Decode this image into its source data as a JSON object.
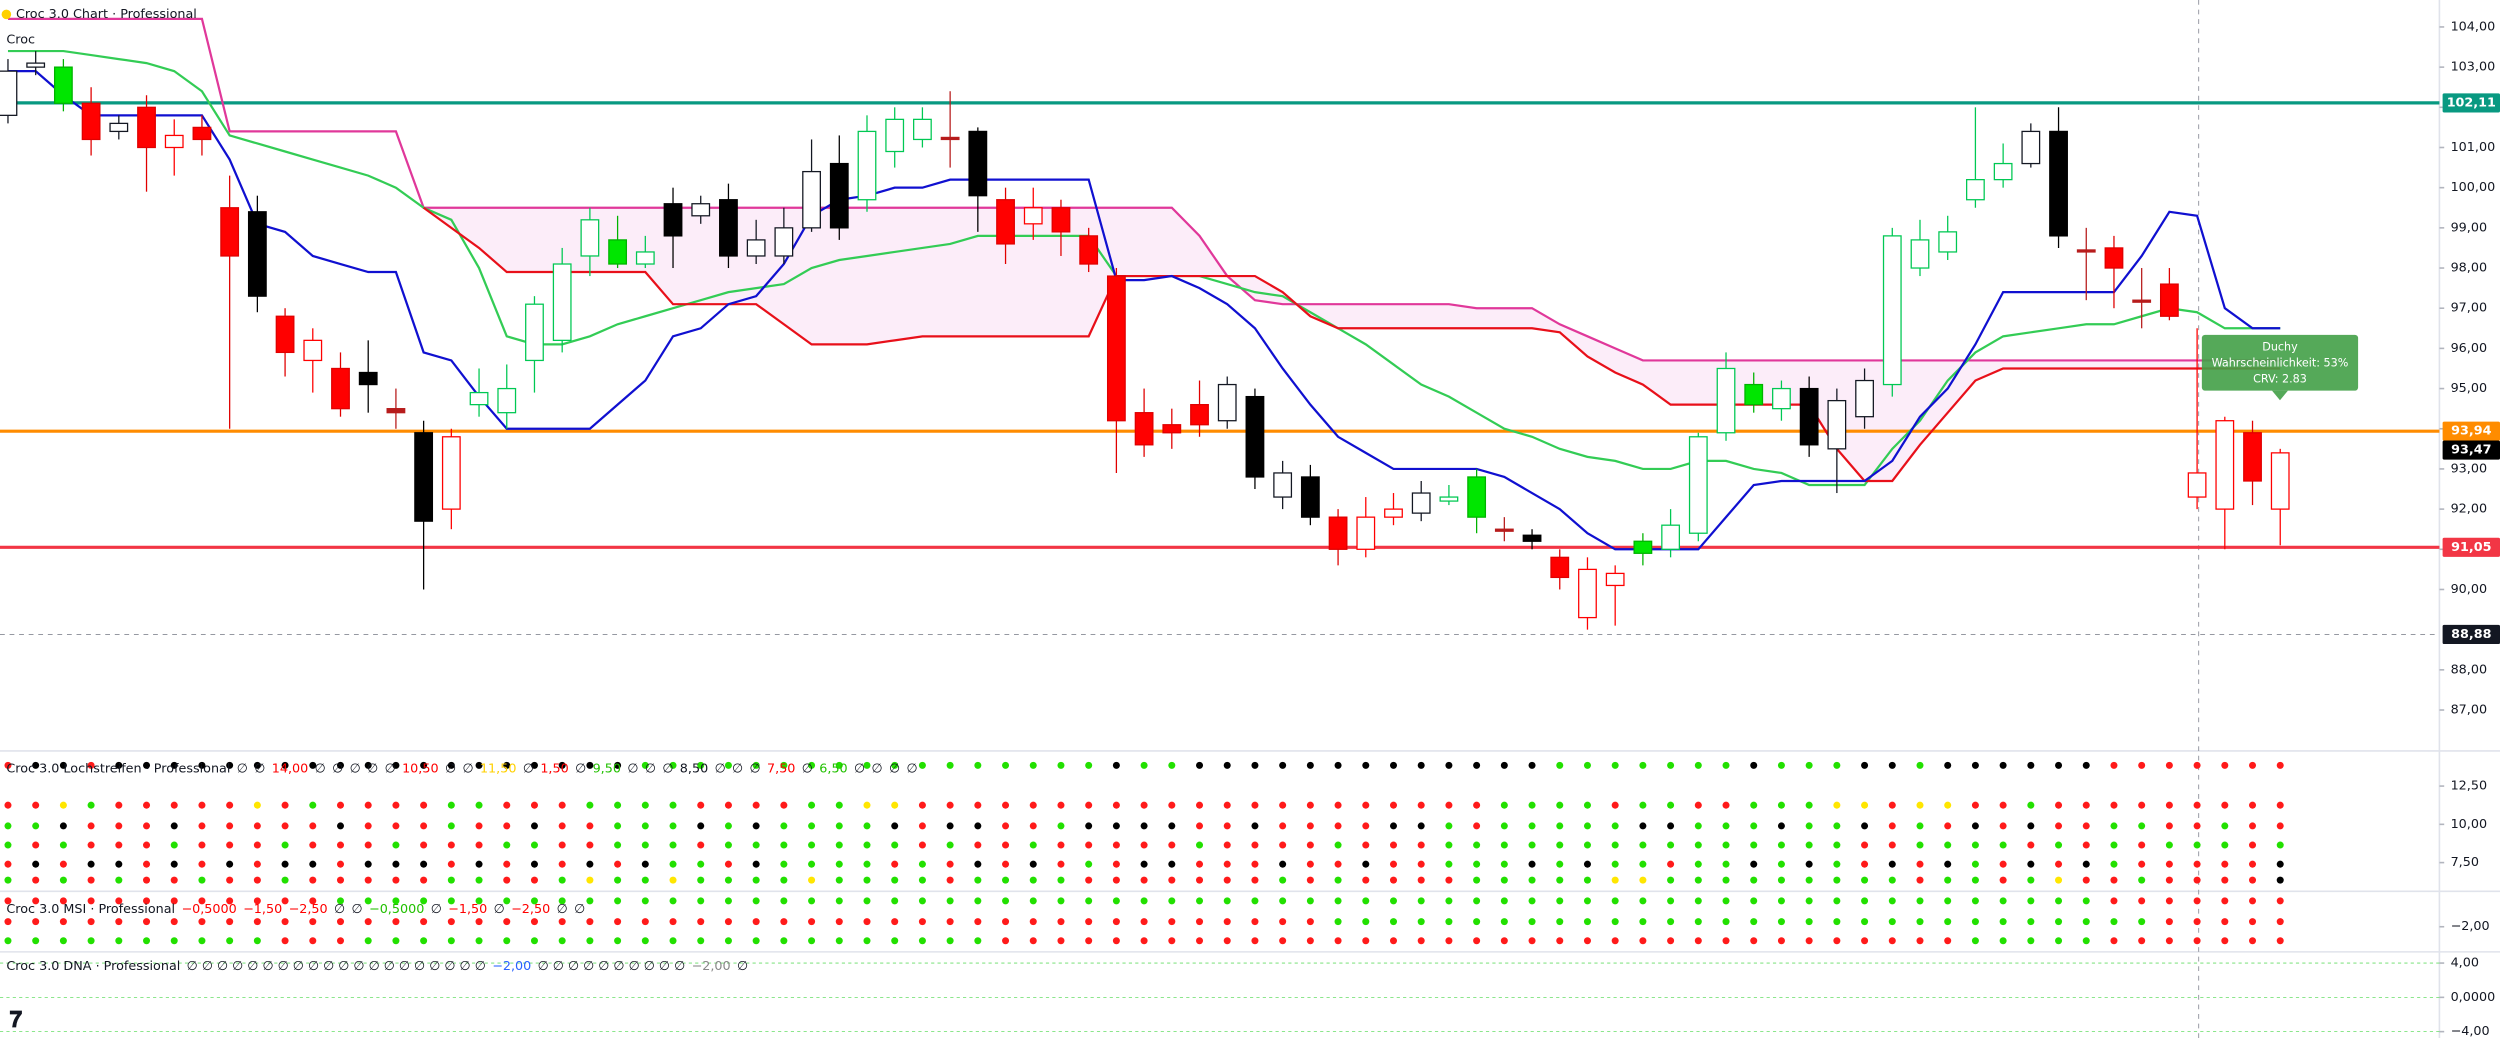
{
  "chart_data": {
    "type": "candlestick",
    "title": "Croc 3.0 Chart · Professional",
    "subtitle": "Croc",
    "ylim": [
      86.02,
      104.67
    ],
    "yticks": [
      {
        "value": 87,
        "label": "87,00"
      },
      {
        "value": 88,
        "label": "88,00"
      },
      {
        "value": 90,
        "label": "90,00"
      },
      {
        "value": 91,
        "label": "91,00"
      },
      {
        "value": 92,
        "label": "92,00"
      },
      {
        "value": 93,
        "label": "93,00"
      },
      {
        "value": 94,
        "label": "94,00"
      },
      {
        "value": 95,
        "label": "95,00"
      },
      {
        "value": 96,
        "label": "96,00"
      },
      {
        "value": 97,
        "label": "97,00"
      },
      {
        "value": 98,
        "label": "98,00"
      },
      {
        "value": 99,
        "label": "99,00"
      },
      {
        "value": 100,
        "label": "100,00"
      },
      {
        "value": 101,
        "label": "101,00"
      },
      {
        "value": 102,
        "label": "102,00"
      },
      {
        "value": 103,
        "label": "103,00"
      },
      {
        "value": 104,
        "label": "104,00"
      }
    ],
    "open": [
      101.8,
      103.0,
      102.1,
      102.1,
      101.4,
      102.0,
      101.0,
      101.5,
      99.5,
      99.4,
      96.8,
      95.7,
      95.5,
      95.4,
      94.5,
      93.9,
      92.0,
      94.6,
      94.4,
      95.7,
      96.2,
      98.3,
      98.1,
      98.1,
      99.6,
      99.3,
      99.7,
      98.3,
      98.3,
      99.0,
      100.6,
      99.7,
      100.9,
      101.2,
      101.25,
      101.4,
      99.7,
      99.1,
      99.5,
      98.8,
      97.8,
      94.4,
      94.1,
      94.6,
      94.2,
      94.8,
      92.3,
      92.8,
      91.8,
      91.0,
      91.8,
      91.9,
      92.2,
      91.8,
      91.5,
      91.35,
      90.8,
      89.3,
      90.1,
      90.9,
      91.0,
      91.4,
      93.9,
      94.6,
      94.5,
      95.0,
      93.5,
      94.3,
      95.1,
      98.0,
      98.4,
      99.7,
      100.2,
      100.6,
      101.4,
      98.45,
      98.5,
      97.2,
      97.6,
      92.3,
      92.0,
      93.9,
      92.0
    ],
    "high": [
      103.2,
      103.4,
      103.2,
      102.5,
      101.8,
      102.3,
      101.7,
      101.8,
      100.3,
      99.8,
      97.0,
      96.5,
      95.9,
      96.2,
      95.0,
      94.2,
      94.0,
      95.5,
      95.6,
      97.3,
      98.5,
      99.5,
      99.3,
      98.8,
      100.0,
      99.8,
      100.1,
      99.2,
      99.5,
      101.2,
      101.3,
      101.8,
      102.0,
      102.0,
      102.4,
      101.5,
      100.0,
      100.0,
      99.7,
      99.0,
      98.0,
      95.0,
      94.5,
      95.2,
      95.3,
      95.0,
      93.2,
      93.1,
      92.0,
      92.3,
      92.4,
      92.7,
      92.6,
      93.0,
      91.8,
      91.5,
      91.0,
      90.8,
      90.6,
      91.4,
      92.0,
      93.9,
      95.9,
      95.4,
      95.2,
      95.3,
      95.0,
      95.5,
      99.0,
      99.2,
      99.3,
      102.0,
      101.1,
      101.6,
      102.0,
      99.0,
      98.8,
      98.0,
      98.0,
      96.5,
      94.3,
      94.2,
      93.5
    ],
    "low": [
      101.6,
      102.8,
      101.9,
      100.8,
      101.2,
      99.9,
      100.3,
      100.8,
      94.0,
      96.9,
      95.3,
      94.9,
      94.3,
      94.4,
      94.0,
      90.0,
      91.5,
      94.3,
      94.0,
      94.9,
      95.9,
      97.8,
      98.0,
      98.0,
      98.0,
      99.1,
      98.0,
      98.1,
      98.1,
      98.9,
      98.7,
      99.4,
      100.5,
      101.0,
      100.5,
      98.9,
      98.1,
      98.7,
      98.3,
      97.9,
      92.9,
      93.3,
      93.5,
      93.8,
      94.0,
      92.5,
      92.0,
      91.6,
      90.6,
      90.8,
      91.6,
      91.7,
      92.1,
      91.4,
      91.2,
      91.0,
      90.0,
      89.0,
      89.1,
      90.6,
      90.8,
      91.2,
      93.7,
      94.4,
      94.2,
      93.3,
      92.4,
      94.0,
      94.8,
      97.8,
      98.2,
      99.5,
      100.0,
      100.5,
      98.5,
      97.2,
      97.0,
      96.5,
      96.7,
      92.0,
      91.0,
      92.1,
      91.1
    ],
    "close": [
      102.9,
      103.1,
      103.0,
      101.2,
      101.6,
      101.0,
      101.3,
      101.2,
      98.3,
      97.3,
      95.9,
      96.2,
      94.5,
      95.1,
      94.4,
      91.7,
      93.8,
      94.9,
      95.0,
      97.1,
      98.1,
      99.2,
      98.7,
      98.4,
      98.8,
      99.6,
      98.3,
      98.7,
      99.0,
      100.4,
      99.0,
      101.4,
      101.7,
      101.7,
      101.2,
      99.8,
      98.6,
      99.5,
      98.9,
      98.1,
      94.2,
      93.6,
      93.9,
      94.1,
      95.1,
      92.8,
      92.9,
      91.8,
      91.0,
      91.8,
      92.0,
      92.4,
      92.3,
      92.8,
      91.45,
      91.2,
      90.3,
      90.5,
      90.4,
      91.2,
      91.6,
      93.8,
      95.5,
      95.1,
      95.0,
      93.6,
      94.7,
      95.2,
      98.8,
      98.7,
      98.9,
      100.2,
      100.6,
      101.4,
      98.8,
      98.4,
      98.0,
      97.15,
      96.8,
      92.9,
      94.2,
      92.7,
      93.4
    ],
    "candle_styles": {
      "W": {
        "fill": "#ffffff",
        "edge": "#131722"
      },
      "K": {
        "fill": "#000000",
        "edge": "#000000"
      },
      "G": {
        "fill": "#00e600",
        "edge": "#00b300"
      },
      "g": {
        "fill": "#ffffff",
        "edge": "#00c853"
      },
      "R": {
        "fill": "#ff0000",
        "edge": "#e00000"
      },
      "r": {
        "fill": "#ffffff",
        "edge": "#ff0000"
      },
      "D": {
        "fill": "#b71c1c",
        "edge": "#b71c1c"
      }
    },
    "candle_style": "WWGRWRrRRKRrRKDKrgggggGgKWKWWWKgggDKRrRRRRRRWKWKRrrWgGDKRrrGgggGgKWWgggggWKDRDRrrRr",
    "lines": [
      {
        "color": "#e0389a",
        "values": [
          104.2,
          104.2,
          104.2,
          104.2,
          104.2,
          104.2,
          104.2,
          104.2,
          101.4,
          101.4,
          101.4,
          101.4,
          101.4,
          101.4,
          101.4,
          99.5,
          99.5,
          99.5,
          99.5,
          99.5,
          99.5,
          99.5,
          99.5,
          99.5,
          99.5,
          99.5,
          99.5,
          99.5,
          99.5,
          99.5,
          99.5,
          99.5,
          99.5,
          99.5,
          99.5,
          99.5,
          99.5,
          99.5,
          99.5,
          99.5,
          99.5,
          99.5,
          99.5,
          98.8,
          97.8,
          97.2,
          97.1,
          97.1,
          97.1,
          97.1,
          97.1,
          97.1,
          97.1,
          97.0,
          97.0,
          97.0,
          96.6,
          96.3,
          96.0,
          95.7,
          95.7,
          95.7,
          95.7,
          95.7,
          95.7,
          95.7,
          95.7,
          95.7,
          95.7,
          95.7,
          95.7,
          95.7,
          95.7,
          95.7,
          95.7,
          95.7,
          95.7,
          95.7,
          95.7,
          95.7,
          95.7,
          95.7,
          95.7
        ]
      },
      {
        "color": "#33cc55",
        "values": [
          103.4,
          103.4,
          103.4,
          103.3,
          103.2,
          103.1,
          102.9,
          102.4,
          101.3,
          101.1,
          100.9,
          100.7,
          100.5,
          100.3,
          100.0,
          99.5,
          99.2,
          98.0,
          96.3,
          96.1,
          96.1,
          96.3,
          96.6,
          96.8,
          97.0,
          97.2,
          97.4,
          97.5,
          97.6,
          98.0,
          98.2,
          98.3,
          98.4,
          98.5,
          98.6,
          98.8,
          98.8,
          98.8,
          98.8,
          98.8,
          97.8,
          97.8,
          97.8,
          97.8,
          97.6,
          97.4,
          97.3,
          96.9,
          96.5,
          96.1,
          95.6,
          95.1,
          94.8,
          94.4,
          94.0,
          93.8,
          93.5,
          93.3,
          93.2,
          93.0,
          93.0,
          93.2,
          93.2,
          93.0,
          92.9,
          92.6,
          92.6,
          92.6,
          93.5,
          94.2,
          95.2,
          95.9,
          96.3,
          96.4,
          96.5,
          96.6,
          96.6,
          96.8,
          97.0,
          96.9,
          96.5,
          96.5,
          96.5
        ]
      },
      {
        "color": "#e8101a",
        "values": [
          null,
          null,
          null,
          null,
          null,
          null,
          null,
          null,
          null,
          null,
          null,
          null,
          null,
          null,
          null,
          99.5,
          99.0,
          98.5,
          97.9,
          97.9,
          97.9,
          97.9,
          97.9,
          97.9,
          97.1,
          97.1,
          97.1,
          97.1,
          96.6,
          96.1,
          96.1,
          96.1,
          96.2,
          96.3,
          96.3,
          96.3,
          96.3,
          96.3,
          96.3,
          96.3,
          97.8,
          97.8,
          97.8,
          97.8,
          97.8,
          97.8,
          97.4,
          96.8,
          96.5,
          96.5,
          96.5,
          96.5,
          96.5,
          96.5,
          96.5,
          96.5,
          96.4,
          95.8,
          95.4,
          95.1,
          94.6,
          94.6,
          94.6,
          94.6,
          94.6,
          94.6,
          93.5,
          92.7,
          92.7,
          93.6,
          94.4,
          95.2,
          95.5,
          95.5,
          95.5,
          95.5,
          95.5,
          95.5,
          95.5,
          95.5,
          95.5,
          95.5,
          95.5
        ]
      },
      {
        "color": "#1010d0",
        "values": [
          102.9,
          102.9,
          102.3,
          101.8,
          101.8,
          101.8,
          101.8,
          101.8,
          100.7,
          99.1,
          98.9,
          98.3,
          98.1,
          97.9,
          97.9,
          95.9,
          95.7,
          94.8,
          94.0,
          94.0,
          94.0,
          94.0,
          94.6,
          95.2,
          96.3,
          96.5,
          97.1,
          97.3,
          98.1,
          99.3,
          99.7,
          99.8,
          100.0,
          100.0,
          100.2,
          100.2,
          100.2,
          100.2,
          100.2,
          100.2,
          97.7,
          97.7,
          97.8,
          97.5,
          97.1,
          96.5,
          95.5,
          94.6,
          93.8,
          93.4,
          93.0,
          93.0,
          93.0,
          93.0,
          92.8,
          92.4,
          92.0,
          91.4,
          91.0,
          91.0,
          91.0,
          91.0,
          91.8,
          92.6,
          92.7,
          92.7,
          92.7,
          92.7,
          93.2,
          94.3,
          95.0,
          96.1,
          97.4,
          97.4,
          97.4,
          97.4,
          97.4,
          98.3,
          99.4,
          99.3,
          97.0,
          96.5,
          96.5
        ]
      }
    ],
    "levels": [
      {
        "value": 102.11,
        "label": "102,11",
        "color": "#089981"
      },
      {
        "value": 93.94,
        "label": "93,94",
        "color": "#ff8c00"
      },
      {
        "value": 91.05,
        "label": "91,05",
        "color": "#f23645"
      }
    ],
    "last_price": {
      "value": 93.47,
      "label": "93,47",
      "color": "#000000"
    },
    "crosshair_price": {
      "value": 88.88,
      "label": "88,88",
      "color": "#131722"
    },
    "signal": {
      "title": "Duchy",
      "probability": "Wahrscheinlichkeit: 53%",
      "crv": "CRV: 2.83",
      "color": "#43a047"
    },
    "dot_colors": {
      "r": "#ff1a1a",
      "g": "#22e000",
      "k": "#000000",
      "y": "#ffe600"
    },
    "panels": [
      {
        "title": "Croc 3.0 Lochstreifen · Professional",
        "tokens": [
          {
            "text": "∅",
            "color": "#131722"
          },
          {
            "text": "∅",
            "color": "#131722"
          },
          {
            "text": "14,00",
            "color": "#ff0000"
          },
          {
            "text": "∅",
            "color": "#131722"
          },
          {
            "text": "∅",
            "color": "#131722"
          },
          {
            "text": "∅",
            "color": "#131722"
          },
          {
            "text": "∅",
            "color": "#131722"
          },
          {
            "text": "∅",
            "color": "#131722"
          },
          {
            "text": "10,50",
            "color": "#ff0000"
          },
          {
            "text": "∅",
            "color": "#131722"
          },
          {
            "text": "∅",
            "color": "#131722"
          },
          {
            "text": "11,50",
            "color": "#ffd000"
          },
          {
            "text": "∅",
            "color": "#131722"
          },
          {
            "text": "1,50",
            "color": "#ff0000"
          },
          {
            "text": "∅",
            "color": "#131722"
          },
          {
            "text": "9,50",
            "color": "#22c000"
          },
          {
            "text": "∅",
            "color": "#131722"
          },
          {
            "text": "∅",
            "color": "#131722"
          },
          {
            "text": "∅",
            "color": "#131722"
          },
          {
            "text": "8,50",
            "color": "#131722"
          },
          {
            "text": "∅",
            "color": "#131722"
          },
          {
            "text": "∅",
            "color": "#131722"
          },
          {
            "text": "∅",
            "color": "#131722"
          },
          {
            "text": "7,50",
            "color": "#ff0000"
          },
          {
            "text": "∅",
            "color": "#131722"
          },
          {
            "text": "6,50",
            "color": "#22c000"
          },
          {
            "text": "∅",
            "color": "#131722"
          },
          {
            "text": "∅",
            "color": "#131722"
          },
          {
            "text": "∅",
            "color": "#131722"
          },
          {
            "text": "∅",
            "color": "#131722"
          }
        ],
        "ylim": [
          14.48,
          5.73
        ],
        "yticks": [
          {
            "value": 12.5,
            "label": "12,50"
          },
          {
            "value": 10,
            "label": "10,00"
          },
          {
            "value": 7.5,
            "label": "7,50"
          }
        ],
        "rows": [
          "rkkrkkkkkkkkkkkkkkkkkkkgggggggggggggggggkggkkkkkkkkkkkkkgggggggkgggkkgkkkkkkrrrrrrrr",
          "rrygrrrrryrgrrrrggrrrggggrrrrggyyrrrrrrrrrrrrrrrrrrrrrggggrggrrgggyyryyrrgrrrrrrrrr",
          "ggkrrrkrrrrrkrrrgrrkrrgggkgkggggkrkkrrgkkkkrrkrrrrkkgrgggggkkgggkggkrgrkrkrrggrrgrr",
          "grgrrrgrrrgrrrgrrrggrrgggrgggggggrgrrgrrrrrgrrrrgrrrgggggggggggggggrrggggrgrgrgggrgrr",
          "rkrkkrkrkrkkrkkkrkrkrkrkggrkggggrgrkrkrgrkkrrrkrrkrrgggkgkggrggkgkgrkrkgrkrkgrrrrrk",
          "grgrgrrgrrgrrrrrggrrgyggyggggyggggrggggrrrrrrrgrgrrrrgggggyygggggggggrggrgyrrgrrrrk"
        ]
      },
      {
        "title": "Croc 3.0 MSI · Professional",
        "tokens": [
          {
            "text": "−0,5000",
            "color": "#ff0000"
          },
          {
            "text": "−1,50",
            "color": "#ff0000"
          },
          {
            "text": "−2,50",
            "color": "#ff0000"
          },
          {
            "text": "∅",
            "color": "#131722"
          },
          {
            "text": "∅",
            "color": "#131722"
          },
          {
            "text": "−0,5000",
            "color": "#22c000"
          },
          {
            "text": "∅",
            "color": "#131722"
          },
          {
            "text": "−1,50",
            "color": "#ff0000"
          },
          {
            "text": "∅",
            "color": "#131722"
          },
          {
            "text": "−2,50",
            "color": "#ff0000"
          },
          {
            "text": "∅",
            "color": "#131722"
          },
          {
            "text": "∅",
            "color": "#131722"
          }
        ],
        "ylim": [
          0.3,
          -3.6
        ],
        "yticks": [
          {
            "value": -2,
            "label": "−2,00"
          }
        ],
        "rows": [
          "rrrrrrrrrrrrggggggggggggggggggggggggggggggggggggggggggggggggggggggggggggggggrrrrrrrr",
          "rrrrrrrrrrrrrrrrrrrrrrrrrrrrrrrrrrrrrrrrrrrrrrrrggggggggggggggggggggggggggggggrrrrrrr",
          "ggggggggggrrrgggggggggggggggggggggggrrrrrrrrrrrrrrrrrrrrrrrrrrrrrrrrrrrgggggrrrrrrrrr"
        ]
      },
      {
        "title": "Croc 3.0 DNA · Professional",
        "tokens": [
          {
            "text": "∅ ∅ ∅ ∅ ∅ ∅ ∅ ∅ ∅ ∅ ∅ ∅ ∅ ∅ ∅ ∅ ∅ ∅ ∅ ∅",
            "color": "#131722"
          },
          {
            "text": "−2,00",
            "color": "#2962ff"
          },
          {
            "text": "∅ ∅ ∅ ∅ ∅ ∅ ∅ ∅ ∅ ∅",
            "color": "#131722"
          },
          {
            "text": "−2,00",
            "color": "#888888"
          },
          {
            "text": "∅",
            "color": "#131722"
          }
        ],
        "ylim": [
          5.12,
          -4.74
        ],
        "yticks": [
          {
            "value": 4,
            "label": "4,00"
          },
          {
            "value": 0,
            "label": "0,0000"
          },
          {
            "value": -4,
            "label": "−4,00"
          }
        ],
        "rows": []
      }
    ]
  }
}
